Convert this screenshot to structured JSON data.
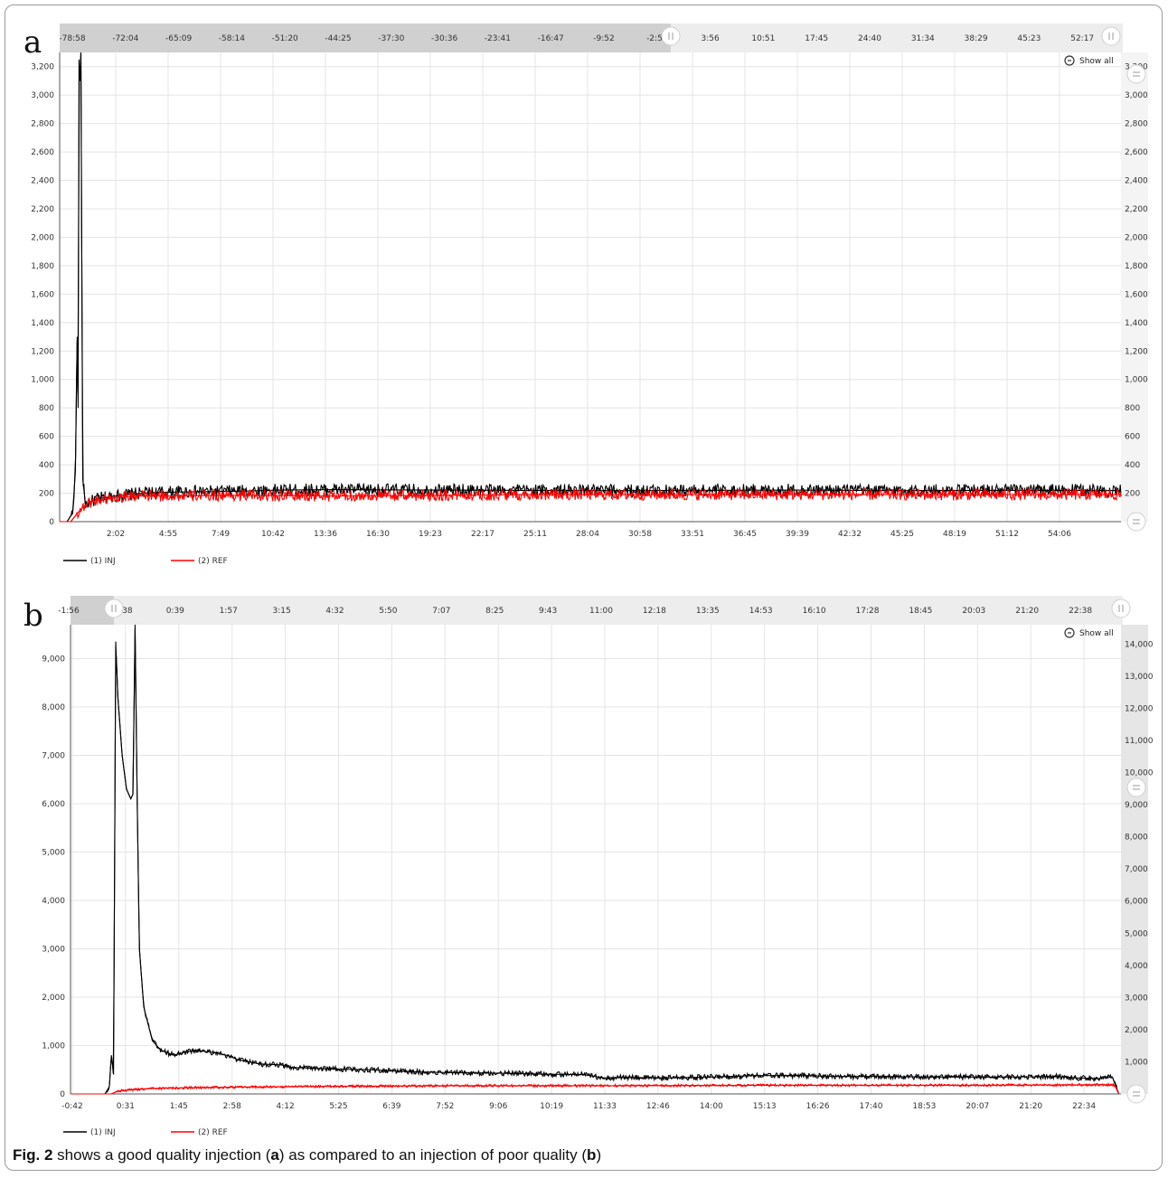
{
  "caption": {
    "label": "Fig. 2",
    "text_1": " shows a good quality injection (",
    "ref_a": "a",
    "text_2": ") as compared to an injection of poor quality (",
    "ref_b": "b",
    "text_3": ")"
  },
  "chart_data": [
    {
      "panel": "a",
      "type": "line",
      "show_all_label": "Show all",
      "grid": true,
      "legend_position": "bottom-left",
      "xlabel": "",
      "ylabel": "",
      "navigator_ticks": [
        "-78:58",
        "-72:04",
        "-65:09",
        "-58:14",
        "-51:20",
        "-44:25",
        "-37:30",
        "-30:36",
        "-23:41",
        "-16:47",
        "-9:52",
        "-2:58",
        "3:56",
        "10:51",
        "17:45",
        "24:40",
        "31:34",
        "38:29",
        "45:23",
        "52:17"
      ],
      "x_tick_labels": [
        "2:02",
        "4:55",
        "7:49",
        "10:42",
        "13:36",
        "16:30",
        "19:23",
        "22:17",
        "25:11",
        "28:04",
        "30:58",
        "33:51",
        "36:45",
        "39:39",
        "42:32",
        "45:25",
        "48:19",
        "51:12",
        "54:06"
      ],
      "y_ticks_left": [
        0,
        200,
        400,
        600,
        800,
        1000,
        1200,
        1400,
        1600,
        1800,
        2000,
        2200,
        2400,
        2600,
        2800,
        3000,
        3200
      ],
      "y_tick_labels_left": [
        "0",
        "200",
        "400",
        "600",
        "800",
        "1,000",
        "1,200",
        "1,400",
        "1,600",
        "1,800",
        "2,000",
        "2,200",
        "2,400",
        "2,600",
        "2,800",
        "3,000",
        "3,200"
      ],
      "ylim_left": [
        0,
        3300
      ],
      "y_tick_labels_right": [
        "200",
        "400",
        "600",
        "800",
        "1,000",
        "1,200",
        "1,400",
        "1,600",
        "1,800",
        "2,000",
        "2,200",
        "2,400",
        "2,600",
        "2,800",
        "3,000",
        "3,200"
      ],
      "ylim_right": [
        0,
        3300
      ],
      "xlim_minutes": [
        0,
        57.5
      ],
      "series": [
        {
          "name": "(1) INJ",
          "color": "#000000",
          "points": [
            [
              0,
              0
            ],
            [
              0.4,
              0
            ],
            [
              0.7,
              60
            ],
            [
              0.85,
              350
            ],
            [
              0.95,
              1300
            ],
            [
              1.0,
              800
            ],
            [
              1.05,
              3250
            ],
            [
              1.1,
              3100
            ],
            [
              1.15,
              3300
            ],
            [
              1.25,
              300
            ],
            [
              1.4,
              120
            ],
            [
              2,
              160
            ],
            [
              3,
              180
            ],
            [
              4,
              195
            ],
            [
              5,
              205
            ],
            [
              7,
              210
            ],
            [
              10,
              215
            ],
            [
              12,
              222
            ],
            [
              15,
              225
            ],
            [
              20,
              222
            ],
            [
              25,
              220
            ],
            [
              30,
              218
            ],
            [
              35,
              220
            ],
            [
              40,
              222
            ],
            [
              45,
              218
            ],
            [
              50,
              220
            ],
            [
              55,
              220
            ],
            [
              57.5,
              218
            ]
          ],
          "noise_amplitude": 45
        },
        {
          "name": "(2) REF",
          "color": "#ff0000",
          "points": [
            [
              0,
              0
            ],
            [
              0.6,
              0
            ],
            [
              1.1,
              80
            ],
            [
              1.5,
              130
            ],
            [
              2,
              150
            ],
            [
              3,
              170
            ],
            [
              4,
              180
            ],
            [
              5,
              180
            ],
            [
              10,
              185
            ],
            [
              15,
              180
            ],
            [
              20,
              185
            ],
            [
              25,
              190
            ],
            [
              30,
              190
            ],
            [
              35,
              190
            ],
            [
              40,
              190
            ],
            [
              45,
              190
            ],
            [
              50,
              190
            ],
            [
              55,
              190
            ],
            [
              57.5,
              190
            ]
          ],
          "noise_amplitude": 40
        }
      ]
    },
    {
      "panel": "b",
      "type": "line",
      "show_all_label": "Show all",
      "grid": true,
      "legend_position": "bottom-left",
      "xlabel": "",
      "ylabel": "",
      "navigator_ticks": [
        "-1:56",
        "-0:38",
        "0:39",
        "1:57",
        "3:15",
        "4:32",
        "5:50",
        "7:07",
        "8:25",
        "9:43",
        "11:00",
        "12:18",
        "13:35",
        "14:53",
        "16:10",
        "17:28",
        "18:45",
        "20:03",
        "21:20",
        "22:38"
      ],
      "x_tick_labels": [
        "-0:42",
        "0:31",
        "1:45",
        "2:58",
        "4:12",
        "5:25",
        "6:39",
        "7:52",
        "9:06",
        "10:19",
        "11:33",
        "12:46",
        "14:00",
        "15:13",
        "16:26",
        "17:40",
        "18:53",
        "20:07",
        "21:20",
        "22:34"
      ],
      "y_ticks_left": [
        0,
        1000,
        2000,
        3000,
        4000,
        5000,
        6000,
        7000,
        8000,
        9000
      ],
      "y_tick_labels_left": [
        "0",
        "1,000",
        "2,000",
        "3,000",
        "4,000",
        "5,000",
        "6,000",
        "7,000",
        "8,000",
        "9,000"
      ],
      "ylim_left": [
        0,
        9700
      ],
      "y_tick_labels_right": [
        "1,000",
        "2,000",
        "3,000",
        "4,000",
        "5,000",
        "6,000",
        "7,000",
        "8,000",
        "9,000",
        "10,000",
        "11,000",
        "12,000",
        "13,000",
        "14,000"
      ],
      "ylim_right": [
        0,
        14600
      ],
      "xlim_minutes": [
        -0.9,
        23.5
      ],
      "series": [
        {
          "name": "(1) INJ",
          "color": "#000000",
          "points": [
            [
              -0.9,
              0
            ],
            [
              -0.1,
              0
            ],
            [
              0.0,
              150
            ],
            [
              0.05,
              800
            ],
            [
              0.1,
              400
            ],
            [
              0.15,
              9350
            ],
            [
              0.2,
              8200
            ],
            [
              0.3,
              7000
            ],
            [
              0.4,
              6300
            ],
            [
              0.5,
              6100
            ],
            [
              0.55,
              6200
            ],
            [
              0.6,
              9700
            ],
            [
              0.65,
              6000
            ],
            [
              0.7,
              3000
            ],
            [
              0.8,
              1800
            ],
            [
              1.0,
              1100
            ],
            [
              1.2,
              900
            ],
            [
              1.5,
              800
            ],
            [
              1.7,
              850
            ],
            [
              2.0,
              900
            ],
            [
              2.5,
              850
            ],
            [
              2.8,
              780
            ],
            [
              3.0,
              700
            ],
            [
              3.5,
              620
            ],
            [
              4.0,
              600
            ],
            [
              4.2,
              550
            ],
            [
              5,
              520
            ],
            [
              6,
              500
            ],
            [
              7,
              460
            ],
            [
              8,
              440
            ],
            [
              9,
              430
            ],
            [
              10,
              410
            ],
            [
              11,
              400
            ],
            [
              11.5,
              330
            ],
            [
              12,
              340
            ],
            [
              13,
              330
            ],
            [
              14,
              350
            ],
            [
              15,
              380
            ],
            [
              16,
              380
            ],
            [
              17,
              360
            ],
            [
              18,
              360
            ],
            [
              19,
              350
            ],
            [
              20,
              350
            ],
            [
              21,
              350
            ],
            [
              22,
              360
            ],
            [
              22.5,
              330
            ],
            [
              23,
              320
            ],
            [
              23.3,
              350
            ],
            [
              23.45,
              0
            ]
          ],
          "noise_amplitude": 55
        },
        {
          "name": "(2) REF",
          "color": "#ff0000",
          "points": [
            [
              -0.9,
              0
            ],
            [
              0.05,
              0
            ],
            [
              0.2,
              60
            ],
            [
              0.6,
              90
            ],
            [
              1.0,
              110
            ],
            [
              2,
              130
            ],
            [
              4,
              150
            ],
            [
              6,
              160
            ],
            [
              8,
              170
            ],
            [
              10,
              170
            ],
            [
              12,
              170
            ],
            [
              14,
              175
            ],
            [
              16,
              180
            ],
            [
              18,
              180
            ],
            [
              20,
              180
            ],
            [
              22,
              185
            ],
            [
              23,
              190
            ],
            [
              23.35,
              180
            ],
            [
              23.45,
              0
            ]
          ],
          "noise_amplitude": 25
        }
      ]
    }
  ]
}
